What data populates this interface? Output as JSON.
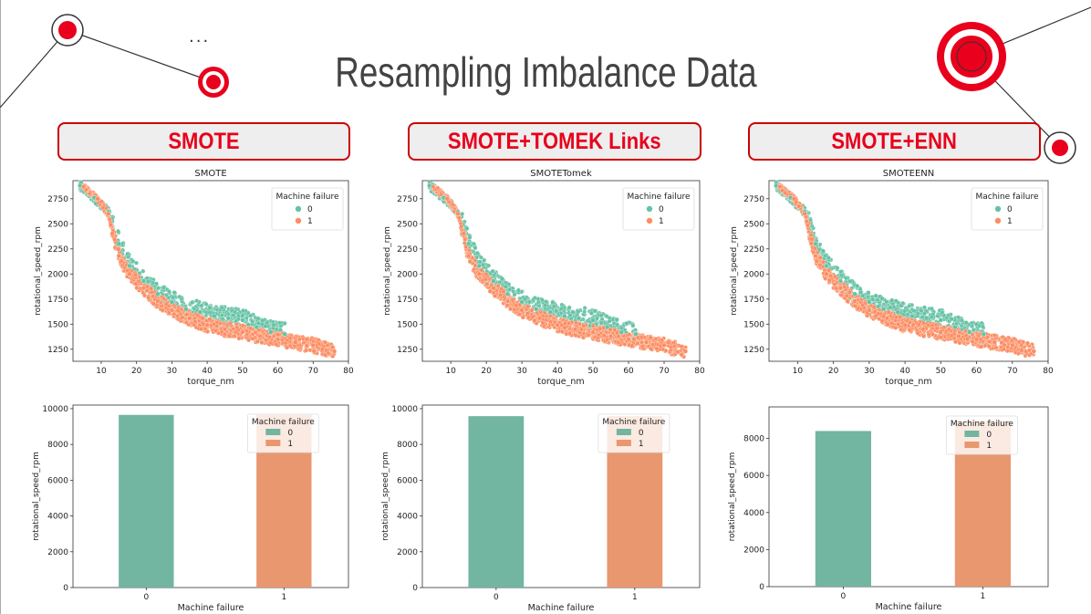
{
  "page": {
    "title": "Resampling Imbalance Data",
    "ellipsis": "...",
    "methods": [
      "SMOTE",
      "SMOTE+TOMEK Links",
      "SMOTE+ENN"
    ]
  },
  "colors": {
    "class0": "#66c2a5",
    "class1": "#fc8d62",
    "bar0": "#72b5a0",
    "bar1": "#e8976f",
    "accent": "#e8001c"
  },
  "chart_data": [
    {
      "type": "scatter",
      "title": "SMOTE",
      "xlabel": "torque_nm",
      "ylabel": "rotational_speed_rpm",
      "xlim": [
        2,
        80
      ],
      "ylim": [
        1130,
        2930
      ],
      "xticks": [
        10,
        20,
        30,
        40,
        50,
        60,
        70,
        80
      ],
      "yticks": [
        1250,
        1500,
        1750,
        2000,
        2250,
        2500,
        2750
      ],
      "legend": {
        "title": "Machine failure",
        "labels": [
          "0",
          "1"
        ],
        "position": "top-right"
      },
      "series": [
        {
          "name": "0",
          "x": [
            4,
            8,
            12,
            15,
            18,
            22,
            26,
            30,
            34,
            38,
            42,
            46,
            50,
            54,
            58,
            62
          ],
          "y": [
            2880,
            2760,
            2620,
            2300,
            2080,
            1930,
            1800,
            1720,
            1650,
            1620,
            1580,
            1560,
            1540,
            1470,
            1420,
            1400
          ]
        },
        {
          "name": "1",
          "x": [
            5,
            9,
            12,
            15,
            18,
            22,
            26,
            30,
            35,
            40,
            45,
            50,
            55,
            60,
            65,
            70,
            76
          ],
          "y": [
            2870,
            2750,
            2600,
            2180,
            2000,
            1860,
            1730,
            1640,
            1560,
            1490,
            1450,
            1420,
            1380,
            1350,
            1320,
            1290,
            1230
          ]
        }
      ]
    },
    {
      "type": "scatter",
      "title": "SMOTETomek",
      "xlabel": "torque_nm",
      "ylabel": "rotational_speed_rpm",
      "xlim": [
        2,
        80
      ],
      "ylim": [
        1130,
        2930
      ],
      "xticks": [
        10,
        20,
        30,
        40,
        50,
        60,
        70,
        80
      ],
      "yticks": [
        1250,
        1500,
        1750,
        2000,
        2250,
        2500,
        2750
      ],
      "legend": {
        "title": "Machine failure",
        "labels": [
          "0",
          "1"
        ],
        "position": "top-right"
      },
      "series": [
        {
          "name": "0",
          "x": [
            4,
            8,
            12,
            15,
            18,
            22,
            26,
            30,
            34,
            38,
            42,
            46,
            50,
            54,
            58,
            62
          ],
          "y": [
            2880,
            2760,
            2620,
            2300,
            2080,
            1930,
            1800,
            1720,
            1650,
            1620,
            1580,
            1560,
            1540,
            1470,
            1420,
            1400
          ]
        },
        {
          "name": "1",
          "x": [
            5,
            9,
            12,
            15,
            18,
            22,
            26,
            30,
            35,
            40,
            45,
            50,
            55,
            60,
            65,
            70,
            76
          ],
          "y": [
            2870,
            2750,
            2600,
            2180,
            2000,
            1860,
            1730,
            1640,
            1560,
            1490,
            1450,
            1420,
            1380,
            1350,
            1320,
            1290,
            1230
          ]
        }
      ]
    },
    {
      "type": "scatter",
      "title": "SMOTEENN",
      "xlabel": "torque_nm",
      "ylabel": "rotational_speed_rpm",
      "xlim": [
        2,
        80
      ],
      "ylim": [
        1130,
        2930
      ],
      "xticks": [
        10,
        20,
        30,
        40,
        50,
        60,
        70,
        80
      ],
      "yticks": [
        1250,
        1500,
        1750,
        2000,
        2250,
        2500,
        2750
      ],
      "legend": {
        "title": "Machine failure",
        "labels": [
          "0",
          "1"
        ],
        "position": "top-right"
      },
      "series": [
        {
          "name": "0",
          "x": [
            4,
            8,
            12,
            15,
            18,
            22,
            26,
            30,
            34,
            38,
            42,
            46,
            50,
            54,
            58,
            62
          ],
          "y": [
            2880,
            2760,
            2620,
            2300,
            2080,
            1930,
            1800,
            1720,
            1650,
            1620,
            1580,
            1560,
            1540,
            1470,
            1420,
            1400
          ]
        },
        {
          "name": "1",
          "x": [
            5,
            9,
            12,
            15,
            18,
            22,
            26,
            30,
            35,
            40,
            45,
            50,
            55,
            60,
            65,
            70,
            76
          ],
          "y": [
            2870,
            2750,
            2600,
            2180,
            2000,
            1860,
            1730,
            1640,
            1560,
            1490,
            1450,
            1420,
            1380,
            1350,
            1320,
            1290,
            1230
          ]
        }
      ]
    },
    {
      "type": "bar",
      "xlabel": "Machine failure",
      "ylabel": "rotational_speed_rpm",
      "categories": [
        "0",
        "1"
      ],
      "values": [
        9650,
        9650
      ],
      "ylim": [
        0,
        10200
      ],
      "yticks": [
        0,
        2000,
        4000,
        6000,
        8000,
        10000
      ],
      "legend": {
        "title": "Machine failure",
        "labels": [
          "0",
          "1"
        ],
        "position": "top-right"
      }
    },
    {
      "type": "bar",
      "xlabel": "Machine failure",
      "ylabel": "rotational_speed_rpm",
      "categories": [
        "0",
        "1"
      ],
      "values": [
        9580,
        9580
      ],
      "ylim": [
        0,
        10200
      ],
      "yticks": [
        0,
        2000,
        4000,
        6000,
        8000,
        10000
      ],
      "legend": {
        "title": "Machine failure",
        "labels": [
          "0",
          "1"
        ],
        "position": "top-right"
      }
    },
    {
      "type": "bar",
      "xlabel": "Machine failure",
      "ylabel": "rotational_speed_rpm",
      "categories": [
        "0",
        "1"
      ],
      "values": [
        8400,
        8950
      ],
      "ylim": [
        0,
        9700
      ],
      "yticks": [
        0,
        2000,
        4000,
        6000,
        8000
      ],
      "legend": {
        "title": "Machine failure",
        "labels": [
          "0",
          "1"
        ],
        "position": "top-right"
      }
    }
  ]
}
